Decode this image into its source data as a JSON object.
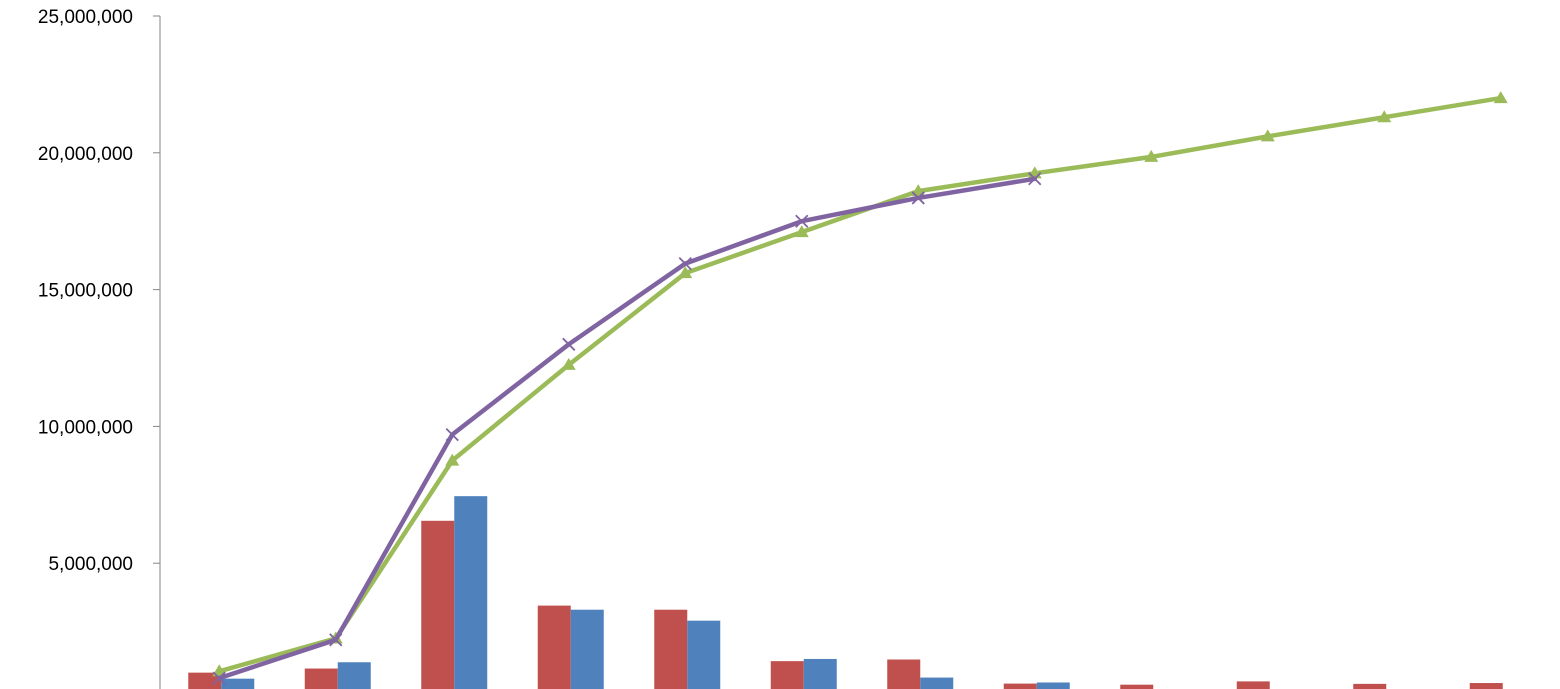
{
  "chart_data": {
    "type": "bar",
    "title": "",
    "xlabel": "",
    "ylabel": "",
    "ylim": [
      0,
      25000000
    ],
    "yticks": [
      5000000,
      10000000,
      15000000,
      20000000,
      25000000
    ],
    "ytick_labels": [
      "5,000,000",
      "10,000,000",
      "15,000,000",
      "20,000,000",
      "25,000,000"
    ],
    "grid": false,
    "legend": "none",
    "categories": [
      "",
      "",
      "",
      "",
      "",
      "",
      "",
      "",
      "",
      "",
      "",
      ""
    ],
    "series": [
      {
        "type": "bar",
        "color": "#c0504d",
        "values": [
          1000000,
          1150000,
          6550000,
          3450000,
          3300000,
          1420000,
          1480000,
          600000,
          560000,
          680000,
          590000,
          620000
        ]
      },
      {
        "type": "bar",
        "color": "#4f81bd",
        "values": [
          780000,
          1380000,
          7450000,
          3300000,
          2900000,
          1500000,
          820000,
          640000,
          null,
          null,
          null,
          null
        ]
      },
      {
        "type": "line",
        "color": "#9bbb59",
        "marker": "triangle",
        "values": [
          1050000,
          2250000,
          8750000,
          12250000,
          15600000,
          17100000,
          18600000,
          19250000,
          19850000,
          20600000,
          21300000,
          22000000
        ]
      },
      {
        "type": "line",
        "color": "#8064a2",
        "marker": "x",
        "values": [
          800000,
          2200000,
          9700000,
          13000000,
          15950000,
          17500000,
          18350000,
          19050000,
          null,
          null,
          null,
          null
        ]
      },
      {
        "type": "line",
        "color": "#4bacc6",
        "marker": "x",
        "values": [
          0,
          0,
          0,
          0,
          0,
          0,
          0,
          0,
          null,
          null,
          null,
          null
        ]
      }
    ]
  }
}
